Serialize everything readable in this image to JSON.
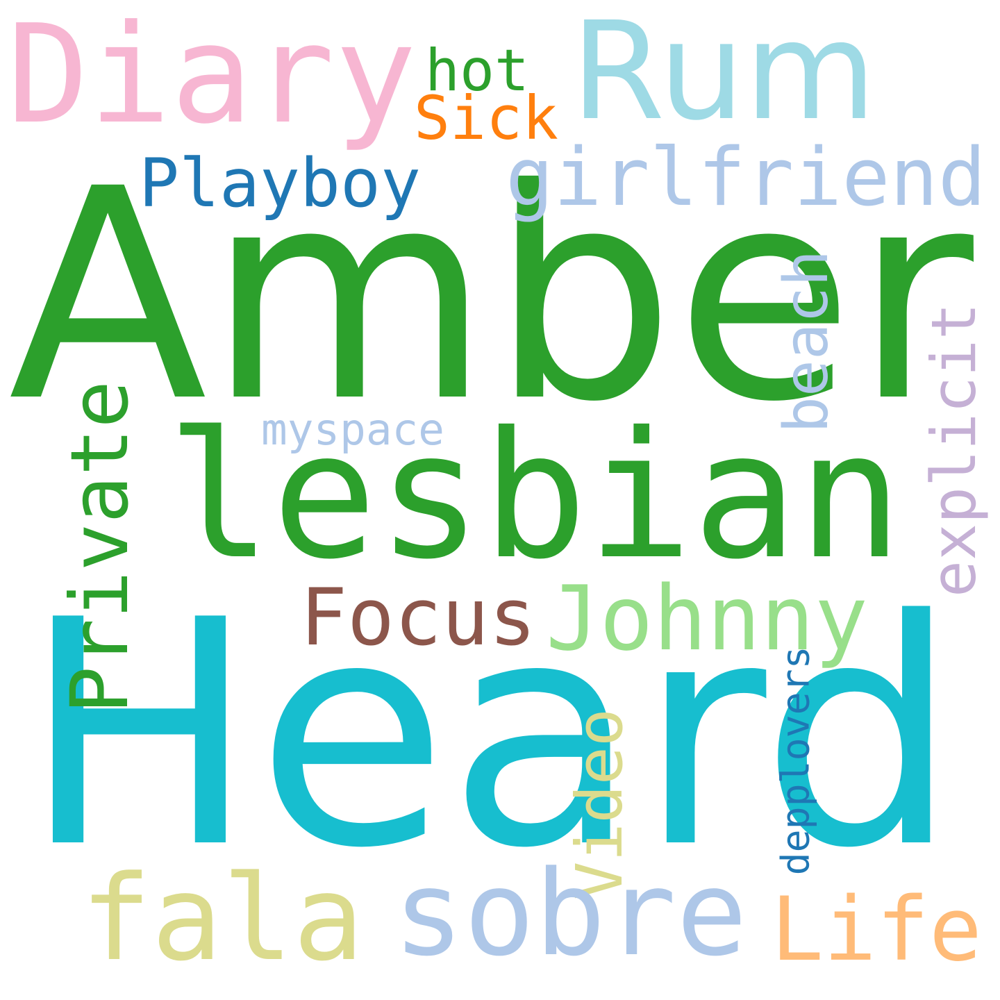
{
  "words": [
    {
      "key": "amber",
      "text": "Amber",
      "color": "#2ca02c",
      "orientation": "horizontal"
    },
    {
      "key": "heard",
      "text": "Heard",
      "color": "#17becf",
      "orientation": "horizontal"
    },
    {
      "key": "rum",
      "text": "Rum",
      "color": "#9edae5",
      "orientation": "horizontal"
    },
    {
      "key": "diary",
      "text": "Diary",
      "color": "#f7b6d2",
      "orientation": "horizontal"
    },
    {
      "key": "lesbian",
      "text": "lesbian",
      "color": "#2ca02c",
      "orientation": "horizontal"
    },
    {
      "key": "girlfriend",
      "text": "girlfriend",
      "color": "#aec7e8",
      "orientation": "horizontal"
    },
    {
      "key": "playboy",
      "text": "Playboy",
      "color": "#1f77b4",
      "orientation": "horizontal"
    },
    {
      "key": "hot",
      "text": "hot",
      "color": "#2ca02c",
      "orientation": "horizontal"
    },
    {
      "key": "sick",
      "text": "Sick",
      "color": "#ff7f0e",
      "orientation": "horizontal"
    },
    {
      "key": "private",
      "text": "Private",
      "color": "#2ca02c",
      "orientation": "vertical"
    },
    {
      "key": "beach",
      "text": "beach",
      "color": "#aec7e8",
      "orientation": "vertical"
    },
    {
      "key": "explicit",
      "text": "explicit",
      "color": "#c5b0d5",
      "orientation": "vertical"
    },
    {
      "key": "myspace",
      "text": "myspace",
      "color": "#aec7e8",
      "orientation": "horizontal"
    },
    {
      "key": "focus",
      "text": "Focus",
      "color": "#8c564b",
      "orientation": "horizontal"
    },
    {
      "key": "johnny",
      "text": "Johnny",
      "color": "#98df8a",
      "orientation": "horizontal"
    },
    {
      "key": "video",
      "text": "Video",
      "color": "#dbdb8d",
      "orientation": "vertical"
    },
    {
      "key": "depplovers",
      "text": "depplovers",
      "color": "#1f77b4",
      "orientation": "vertical"
    },
    {
      "key": "fala",
      "text": "fala",
      "color": "#dbdb8d",
      "orientation": "horizontal"
    },
    {
      "key": "sobre",
      "text": "sobre",
      "color": "#aec7e8",
      "orientation": "horizontal"
    },
    {
      "key": "life",
      "text": "Life",
      "color": "#ffbb78",
      "orientation": "horizontal"
    }
  ]
}
